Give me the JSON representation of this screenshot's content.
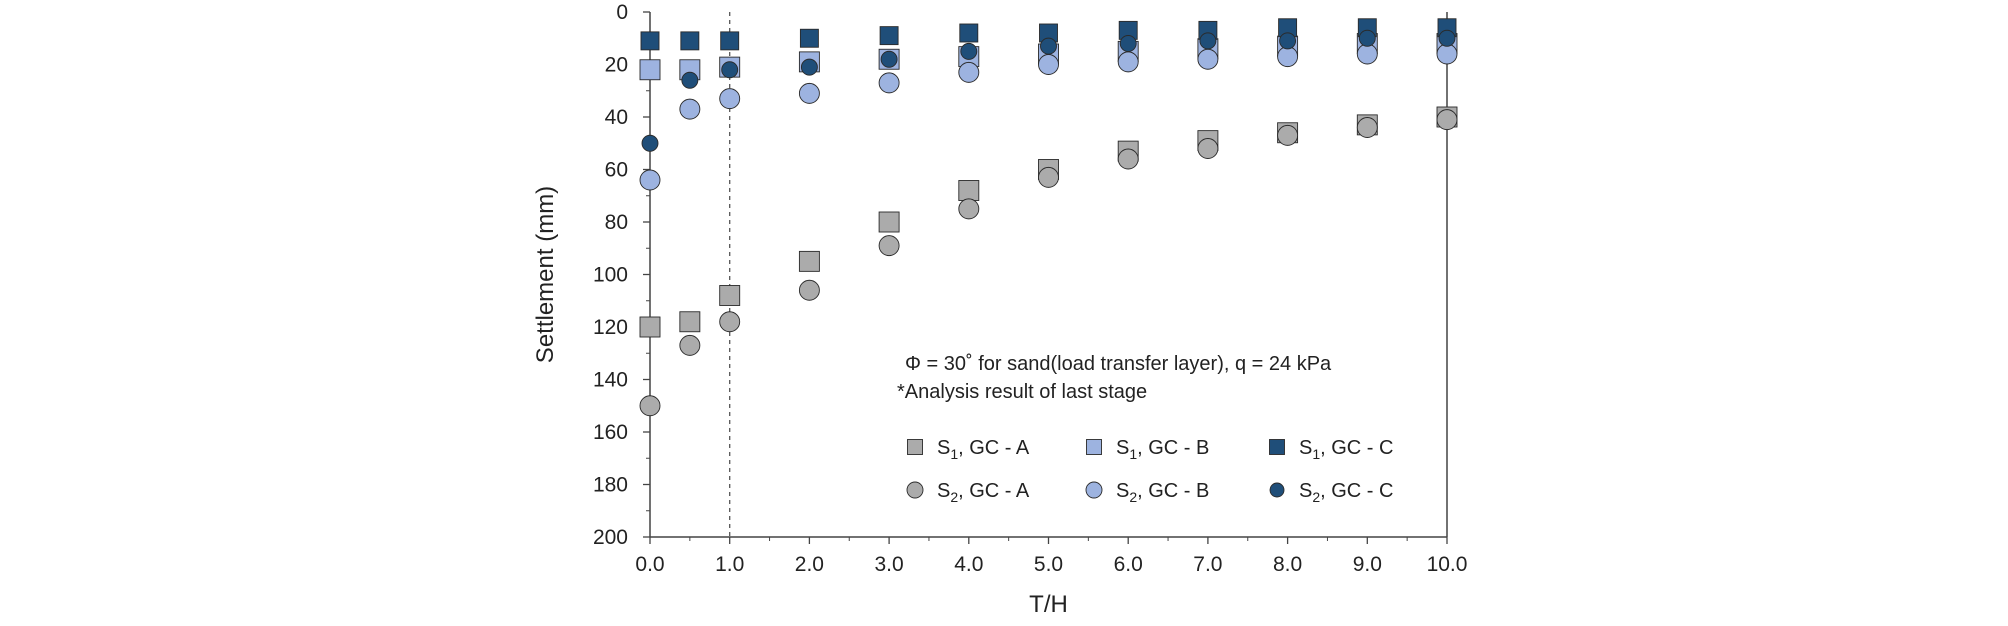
{
  "chart_data": {
    "type": "scatter",
    "xlabel": "T/H",
    "ylabel": "Settlement (mm)",
    "xlim": [
      0,
      10
    ],
    "ylim": [
      0,
      200
    ],
    "y_inverted": true,
    "x_ticks": [
      0.0,
      1.0,
      2.0,
      3.0,
      4.0,
      5.0,
      6.0,
      7.0,
      8.0,
      9.0,
      10.0
    ],
    "x_tick_labels": [
      "0.0",
      "1.0",
      "2.0",
      "3.0",
      "4.0",
      "5.0",
      "6.0",
      "7.0",
      "8.0",
      "9.0",
      "10.0"
    ],
    "y_ticks": [
      0,
      20,
      40,
      60,
      80,
      100,
      120,
      140,
      160,
      180,
      200
    ],
    "y_tick_labels": [
      "0",
      "20",
      "40",
      "60",
      "80",
      "100",
      "120",
      "140",
      "160",
      "180",
      "200"
    ],
    "reference_line_x": 1.0,
    "annotations": [
      "Φ = 30˚ for sand(load transfer layer),   q = 24 kPa",
      "*Analysis result of  last stage"
    ],
    "legend_position": "bottom-right",
    "x": [
      0.0,
      0.5,
      1.0,
      2.0,
      3.0,
      4.0,
      5.0,
      6.0,
      7.0,
      8.0,
      9.0,
      10.0
    ],
    "series": [
      {
        "label_main": "S",
        "label_sub": "1",
        "label_rest": ", GC - A",
        "marker": "square",
        "color": "#ababab",
        "values": [
          120,
          118,
          108,
          95,
          80,
          68,
          60,
          53,
          49,
          46,
          43,
          40
        ]
      },
      {
        "label_main": "S",
        "label_sub": "1",
        "label_rest": ", GC - B",
        "marker": "square",
        "color": "#9db3e0",
        "values": [
          22,
          22,
          21,
          19,
          18,
          17,
          16,
          15,
          14,
          13,
          12,
          12
        ]
      },
      {
        "label_main": "S",
        "label_sub": "1",
        "label_rest": ", GC - C",
        "marker": "square",
        "color": "#1f4e79",
        "values": [
          11,
          11,
          11,
          10,
          9,
          8,
          8,
          7,
          7,
          6,
          6,
          6
        ]
      },
      {
        "label_main": "S",
        "label_sub": "2",
        "label_rest": ", GC - A",
        "marker": "circle",
        "color": "#ababab",
        "values": [
          150,
          127,
          118,
          106,
          89,
          75,
          63,
          56,
          52,
          47,
          44,
          41
        ]
      },
      {
        "label_main": "S",
        "label_sub": "2",
        "label_rest": ", GC - B",
        "marker": "circle",
        "color": "#9db3e0",
        "values": [
          64,
          37,
          33,
          31,
          27,
          23,
          20,
          19,
          18,
          17,
          16,
          16
        ]
      },
      {
        "label_main": "S",
        "label_sub": "2",
        "label_rest": ", GC - C",
        "marker": "circle",
        "color": "#1f4e79",
        "values": [
          50,
          26,
          22,
          21,
          18,
          15,
          13,
          12,
          11,
          11,
          10,
          10
        ]
      }
    ]
  }
}
